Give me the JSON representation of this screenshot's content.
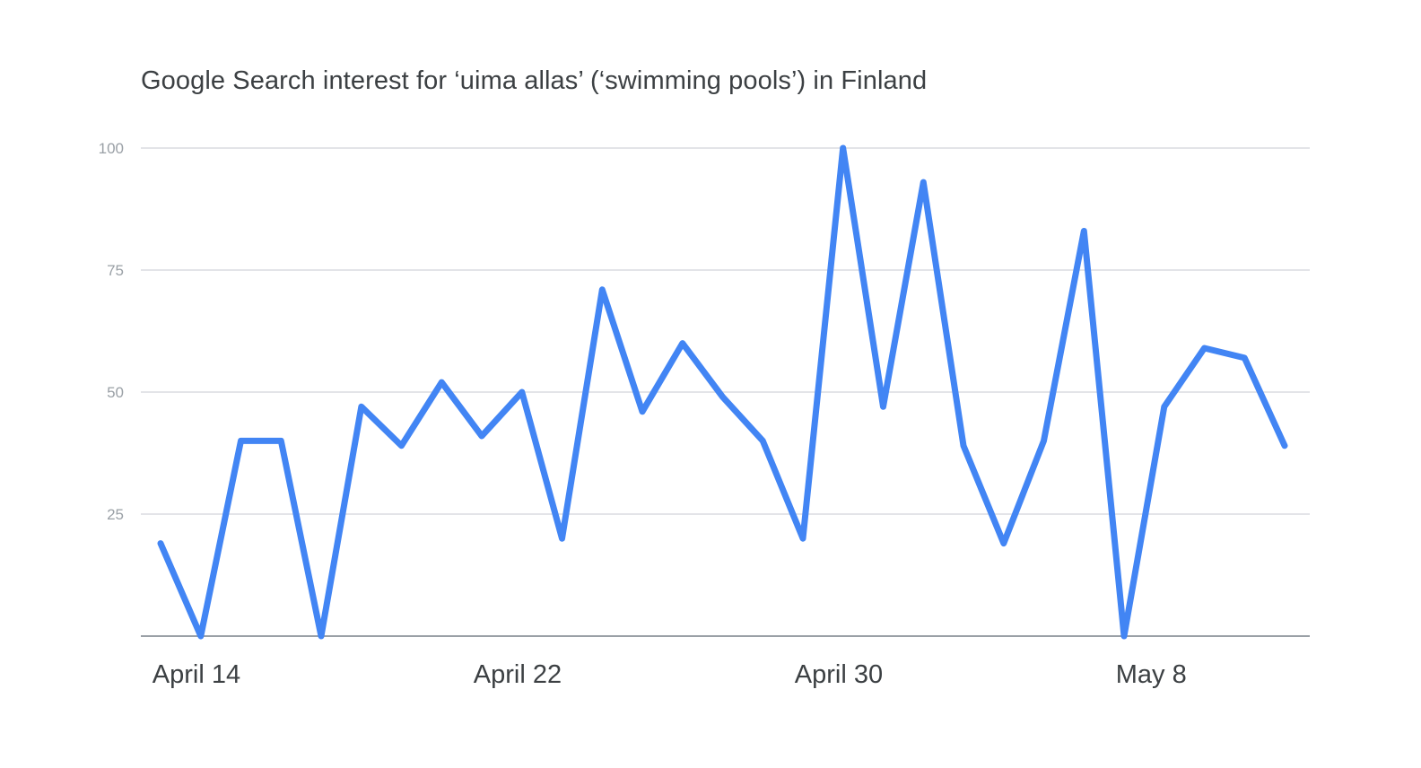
{
  "chart_data": {
    "type": "line",
    "title": "Google Search interest for ‘uima allas’ (‘swimming pools’) in Finland",
    "xlabel": "",
    "ylabel": "",
    "ylim": [
      0,
      100
    ],
    "y_ticks": [
      {
        "value": 100,
        "label": "100"
      },
      {
        "value": 75,
        "label": "75"
      },
      {
        "value": 50,
        "label": "50"
      },
      {
        "value": 25,
        "label": "25"
      }
    ],
    "x_ticks": [
      {
        "x": "2021-04-14",
        "label": "April 14"
      },
      {
        "x": "2021-04-22",
        "label": "April 22"
      },
      {
        "x": "2021-04-30",
        "label": "April 30"
      },
      {
        "x": "2021-05-08",
        "label": "May 8"
      }
    ],
    "x": [
      "2021-04-13",
      "2021-04-14",
      "2021-04-15",
      "2021-04-16",
      "2021-04-17",
      "2021-04-18",
      "2021-04-19",
      "2021-04-20",
      "2021-04-21",
      "2021-04-22",
      "2021-04-23",
      "2021-04-24",
      "2021-04-25",
      "2021-04-26",
      "2021-04-27",
      "2021-04-28",
      "2021-04-29",
      "2021-04-30",
      "2021-05-01",
      "2021-05-02",
      "2021-05-03",
      "2021-05-04",
      "2021-05-05",
      "2021-05-06",
      "2021-05-07",
      "2021-05-08",
      "2021-05-09",
      "2021-05-10",
      "2021-05-11"
    ],
    "series": [
      {
        "color": "#4285f4",
        "values": [
          19,
          0,
          40,
          40,
          0,
          47,
          39,
          52,
          41,
          50,
          20,
          71,
          46,
          60,
          49,
          40,
          20,
          100,
          47,
          93,
          39,
          19,
          40,
          83,
          0,
          47,
          59,
          57,
          39
        ]
      }
    ],
    "grid": true,
    "legend": "none"
  }
}
